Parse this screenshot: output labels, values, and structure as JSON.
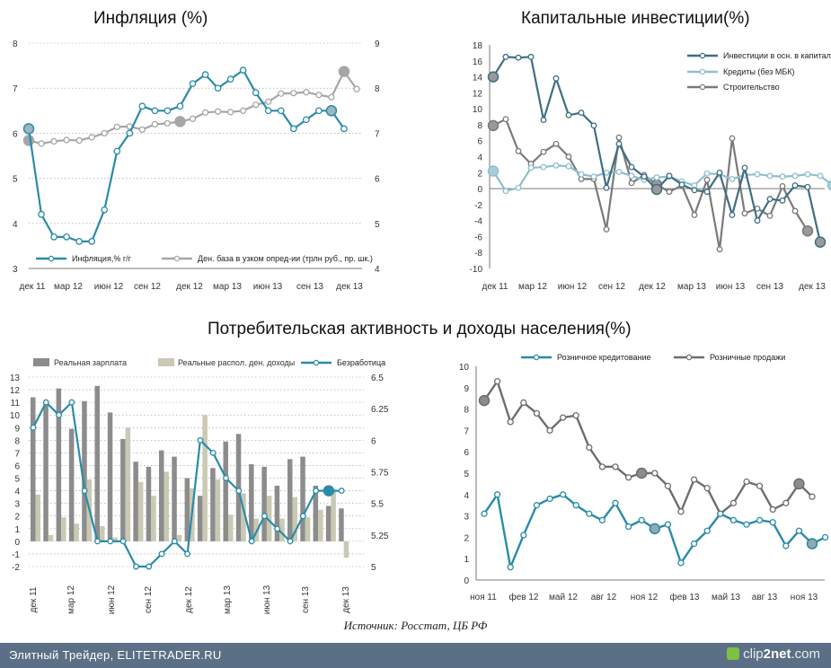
{
  "titles": {
    "inflation": "Инфляция (%)",
    "capital": "Капитальные инвестиции(%)",
    "consumer": "Потребительская активность и доходы населения(%)"
  },
  "source": "Источник: Росстат, ЦБ РФ",
  "footer": {
    "left": "Элитный Трейдер, ELITETRADER.RU",
    "brand_a": "clip",
    "brand_b": "2net",
    "brand_c": ".com"
  },
  "colors": {
    "teal": "#2a8ba8",
    "gray": "#a6a6a6",
    "darkgray": "#6e6e6e",
    "slate": "#3f6f82",
    "lightteal": "#8fbfce",
    "midgray": "#7a7a7a",
    "beige": "#c9c9b4",
    "barGray": "#8c8c8c"
  },
  "chart_data": [
    {
      "id": "inflation",
      "type": "line",
      "title": "Инфляция (%)",
      "x_tick_labels": [
        "дек 11",
        "мар 12",
        "июн 12",
        "сен 12",
        "дек 12",
        "мар 13",
        "июн 13",
        "сен 13",
        "дек 13"
      ],
      "y_left_range": [
        3,
        8
      ],
      "y_left_ticks": [
        "3",
        "4",
        "5",
        "6",
        "7",
        "8"
      ],
      "y_right_range": [
        4,
        9
      ],
      "y_right_ticks": [
        "4",
        "5",
        "6",
        "7",
        "8",
        "9"
      ],
      "series": [
        {
          "name": "Инфляция,% г/г",
          "axis": "left",
          "color": "#2a8ba8",
          "values": [
            6.1,
            4.2,
            3.7,
            3.7,
            3.6,
            3.6,
            4.3,
            5.6,
            6.0,
            6.6,
            6.5,
            6.5,
            6.6,
            7.1,
            7.3,
            7.0,
            7.2,
            7.4,
            6.9,
            6.5,
            6.5,
            6.1,
            6.3,
            6.5,
            6.5,
            6.1
          ],
          "highlight": [
            0,
            24
          ]
        },
        {
          "name": "Ден. база в узком опред-ии (трлн руб., пр. шк.)",
          "axis": "right",
          "color": "#a6a6a6",
          "values": [
            6.84,
            6.77,
            6.82,
            6.85,
            6.84,
            6.91,
            7.0,
            7.14,
            7.15,
            7.08,
            7.2,
            7.22,
            7.26,
            7.32,
            7.46,
            7.48,
            7.47,
            7.5,
            7.63,
            7.7,
            7.88,
            7.89,
            7.91,
            7.85,
            7.8,
            8.37,
            7.98
          ],
          "highlight": [
            0,
            12,
            25
          ]
        }
      ]
    },
    {
      "id": "capital",
      "type": "line",
      "title": "Капитальные инвестиции(%)",
      "x_tick_labels": [
        "дек 11",
        "мар 12",
        "июн 12",
        "сен 12",
        "дек 12",
        "мар 13",
        "июн 13",
        "сен 13",
        "дек 13"
      ],
      "y_range": [
        -10,
        18
      ],
      "y_ticks": [
        "-10",
        "-8",
        "-6",
        "-4",
        "-2",
        "0",
        "2",
        "4",
        "6",
        "8",
        "10",
        "12",
        "14",
        "16",
        "18"
      ],
      "series": [
        {
          "name": "Инвестиции в осн. в капитал",
          "color": "#3f6f82",
          "values": [
            14.0,
            16.5,
            16.4,
            16.5,
            8.6,
            13.8,
            9.2,
            9.5,
            7.9,
            0.1,
            5.6,
            2.7,
            1.5,
            -0.1,
            1.6,
            0.5,
            -0.2,
            -0.4,
            2.0,
            -3.3,
            2.6,
            -4.0,
            -1.3,
            -1.5,
            0.4,
            0.2,
            -6.7
          ],
          "highlight": [
            0,
            13,
            26
          ]
        },
        {
          "name": "Кредиты (без МБК)",
          "color": "#8fbfce",
          "values": [
            2.2,
            -0.3,
            0.1,
            2.6,
            2.7,
            2.9,
            2.8,
            1.8,
            1.5,
            2.0,
            2.1,
            1.6,
            1.1,
            1.4,
            1.5,
            0.9,
            0.4,
            1.9,
            1.8,
            1.2,
            1.7,
            1.8,
            1.6,
            1.5,
            1.6,
            1.8,
            1.6,
            0.4,
            2.1
          ],
          "highlight": [
            0,
            27
          ]
        },
        {
          "name": "Строительство",
          "color": "#7a7a7a",
          "values": [
            7.9,
            8.7,
            4.7,
            3.1,
            4.6,
            5.6,
            4.0,
            1.2,
            1.2,
            -5.1,
            6.4,
            0.7,
            1.7,
            0.5,
            -0.4,
            0.4,
            -3.3,
            1.1,
            -7.6,
            6.3,
            -3.1,
            -2.5,
            -3.4,
            0.3,
            -2.8,
            -5.3
          ],
          "highlight": [
            0,
            13,
            25
          ]
        }
      ]
    },
    {
      "id": "wages",
      "type": "bar+line",
      "x_tick_labels": [
        "дек 11",
        "мар 12",
        "июн 12",
        "сен 12",
        "дек 12",
        "мар 13",
        "июн 13",
        "сен 13",
        "дек 13"
      ],
      "y_left_range": [
        -2,
        13
      ],
      "y_left_ticks": [
        "-2",
        "-1",
        "0",
        "1",
        "2",
        "3",
        "4",
        "5",
        "6",
        "7",
        "8",
        "9",
        "10",
        "11",
        "12",
        "13"
      ],
      "y_right_range": [
        5,
        6.5
      ],
      "y_right_ticks": [
        "5",
        "5.25",
        "5.5",
        "5.75",
        "6",
        "6.25",
        "6.5"
      ],
      "series": [
        {
          "name": "Реальная зарплата",
          "kind": "bar",
          "axis": "left",
          "color": "#8c8c8c",
          "values": [
            11.4,
            11.0,
            12.1,
            8.9,
            11.1,
            12.3,
            10.2,
            8.1,
            6.3,
            5.9,
            7.2,
            6.7,
            5.0,
            3.6,
            5.8,
            7.9,
            8.5,
            6.1,
            5.9,
            4.4,
            6.5,
            6.7,
            4.4,
            2.8,
            2.6
          ]
        },
        {
          "name": "Реальные распол. ден. доходы",
          "kind": "bar",
          "axis": "left",
          "color": "#c9c9b4",
          "values": [
            3.7,
            0.5,
            1.9,
            1.4,
            4.9,
            1.2,
            0.3,
            9.0,
            4.7,
            3.6,
            5.5,
            0.5,
            4.2,
            10.0,
            4.9,
            2.1,
            3.8,
            1.8,
            3.6,
            1.8,
            3.5,
            1.9,
            2.5,
            4.1,
            -1.3
          ]
        },
        {
          "name": "Безработица",
          "kind": "line",
          "axis": "right",
          "color": "#2a8ba8",
          "values": [
            6.1,
            6.3,
            6.2,
            6.3,
            5.6,
            5.2,
            5.2,
            5.2,
            5.0,
            5.0,
            5.1,
            5.2,
            5.1,
            6.0,
            5.9,
            5.7,
            5.6,
            5.2,
            5.4,
            5.3,
            5.2,
            5.4,
            5.6,
            5.6,
            5.6
          ],
          "highlight": [
            23
          ]
        }
      ]
    },
    {
      "id": "retail",
      "type": "line",
      "x_tick_labels": [
        "ноя 11",
        "фев 12",
        "май 12",
        "авг 12",
        "ноя 12",
        "фев 13",
        "май 13",
        "авг 13",
        "ноя 13"
      ],
      "y_range": [
        0,
        10
      ],
      "y_ticks": [
        "0",
        "1",
        "2",
        "3",
        "4",
        "5",
        "6",
        "7",
        "8",
        "9",
        "10"
      ],
      "series": [
        {
          "name": "Розничное кредитование",
          "color": "#2a8ba8",
          "values": [
            3.1,
            4.0,
            0.6,
            2.1,
            3.5,
            3.8,
            4.0,
            3.5,
            3.1,
            2.8,
            3.6,
            2.5,
            2.8,
            2.4,
            2.6,
            0.8,
            1.7,
            2.3,
            3.1,
            2.8,
            2.6,
            2.8,
            2.7,
            1.6,
            2.3,
            1.7,
            2.0
          ],
          "highlight": [
            13,
            25
          ]
        },
        {
          "name": "Розничные продажи",
          "color": "#6e6e6e",
          "values": [
            8.4,
            9.3,
            7.4,
            8.3,
            7.8,
            7.0,
            7.6,
            7.7,
            6.2,
            5.3,
            5.3,
            4.8,
            5.0,
            5.0,
            4.4,
            3.2,
            4.7,
            4.3,
            3.1,
            3.6,
            4.6,
            4.4,
            3.3,
            3.6,
            4.5,
            3.9
          ],
          "highlight": [
            0,
            12,
            24
          ]
        }
      ]
    }
  ]
}
